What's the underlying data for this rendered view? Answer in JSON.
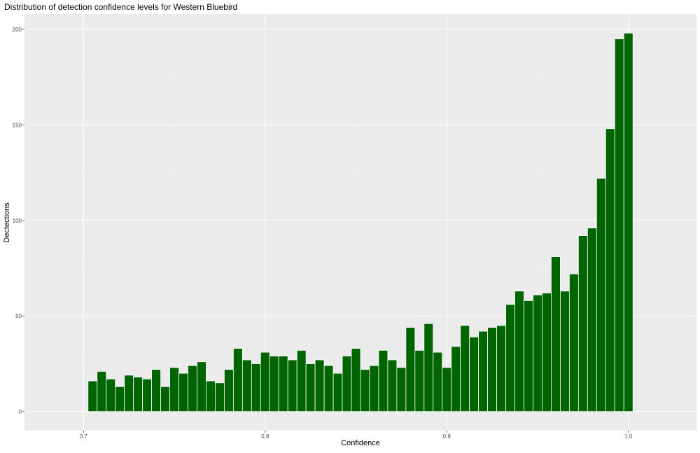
{
  "chart_data": {
    "type": "bar",
    "title": "Distribution of detection confidence levels for Western Bluebird",
    "xlabel": "Confidence",
    "ylabel": "Dectections",
    "xlim": [
      0.6675,
      1.0375
    ],
    "ylim": [
      -10,
      208
    ],
    "x_ticks": [
      0.7,
      0.8,
      0.9,
      1.0
    ],
    "x_tick_labels": [
      "0.7",
      "0.8",
      "0.9",
      "1.0"
    ],
    "y_ticks": [
      0,
      50,
      100,
      150,
      200
    ],
    "y_tick_labels": [
      "0",
      "50",
      "100",
      "150",
      "200"
    ],
    "grid": true,
    "bin_width": 0.005,
    "bar_color": "#006400",
    "bar_outline": "#ffffff",
    "panel_background": "#ebebeb",
    "x": [
      0.705,
      0.71,
      0.715,
      0.72,
      0.725,
      0.73,
      0.735,
      0.74,
      0.745,
      0.75,
      0.755,
      0.76,
      0.765,
      0.77,
      0.775,
      0.78,
      0.785,
      0.79,
      0.795,
      0.8,
      0.805,
      0.81,
      0.815,
      0.82,
      0.825,
      0.83,
      0.835,
      0.84,
      0.845,
      0.85,
      0.855,
      0.86,
      0.865,
      0.87,
      0.875,
      0.88,
      0.885,
      0.89,
      0.895,
      0.9,
      0.905,
      0.91,
      0.915,
      0.92,
      0.925,
      0.93,
      0.935,
      0.94,
      0.945,
      0.95,
      0.955,
      0.96,
      0.965,
      0.97,
      0.975,
      0.98,
      0.985,
      0.99,
      0.995,
      1.0
    ],
    "values": [
      16,
      21,
      17,
      13,
      19,
      18,
      17,
      22,
      13,
      23,
      20,
      24,
      26,
      16,
      15,
      22,
      33,
      27,
      25,
      31,
      29,
      29,
      27,
      32,
      25,
      27,
      24,
      20,
      29,
      33,
      22,
      24,
      32,
      27,
      23,
      44,
      32,
      46,
      31,
      23,
      34,
      45,
      39,
      42,
      44,
      45,
      56,
      63,
      58,
      61,
      62,
      81,
      63,
      72,
      92,
      96,
      122,
      148,
      195,
      198
    ]
  }
}
